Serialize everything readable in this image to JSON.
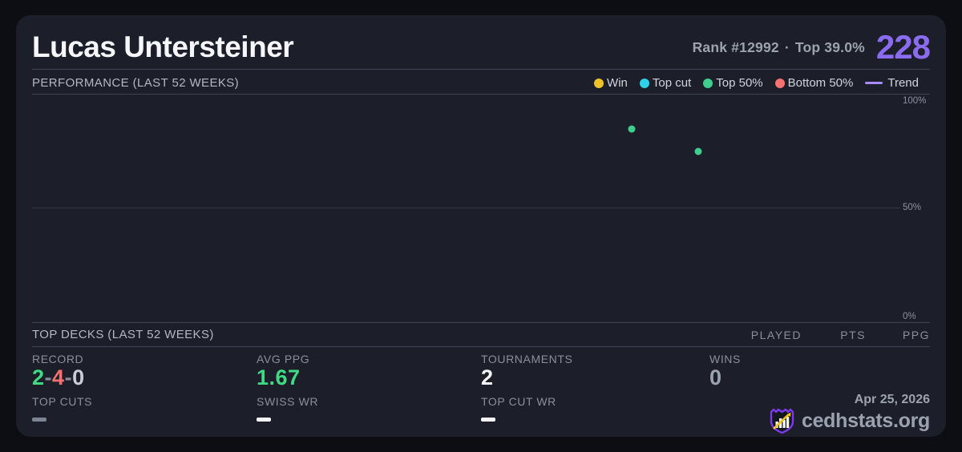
{
  "header": {
    "player_name": "Lucas Untersteiner",
    "rank_text": "Rank #12992",
    "dot_separator": "·",
    "top_percent_text": "Top 39.0%",
    "score": "228",
    "score_color": "#8b6cf0"
  },
  "performance": {
    "title": "PERFORMANCE (LAST 52 WEEKS)",
    "legend": [
      {
        "label": "Win",
        "color": "#eec327",
        "swatch": "dot"
      },
      {
        "label": "Top cut",
        "color": "#2fd3e8",
        "swatch": "dot"
      },
      {
        "label": "Top 50%",
        "color": "#3ecf8e",
        "swatch": "dot"
      },
      {
        "label": "Bottom 50%",
        "color": "#f87171",
        "swatch": "dot"
      },
      {
        "label": "Trend",
        "color": "#a78bfa",
        "swatch": "line"
      }
    ]
  },
  "chart_data": {
    "type": "scatter",
    "title": "",
    "xlabel": "",
    "ylabel": "",
    "x_range_weeks": 52,
    "ylim": [
      0,
      100
    ],
    "ytick_labels": [
      "100%",
      "50%",
      "0%"
    ],
    "grid": true,
    "legend_position": "top-right",
    "points": [
      {
        "week": 36,
        "percentile": 85,
        "category": "Top 50%",
        "color": "#3ecf8e"
      },
      {
        "week": 40,
        "percentile": 75,
        "category": "Top 50%",
        "color": "#3ecf8e"
      }
    ]
  },
  "top_decks": {
    "title": "TOP DECKS (LAST 52 WEEKS)",
    "columns": [
      "PLAYED",
      "PTS",
      "PPG"
    ],
    "rows": []
  },
  "stats": {
    "record": {
      "label": "RECORD",
      "wins": "2",
      "losses": "4",
      "draws": "0",
      "sep": "-"
    },
    "avg_ppg": {
      "label": "AVG PPG",
      "value": "1.67"
    },
    "tournaments": {
      "label": "TOURNAMENTS",
      "value": "2"
    },
    "wins": {
      "label": "WINS",
      "value": "0"
    },
    "top_cuts": {
      "label": "TOP CUTS",
      "value": "—"
    },
    "swiss_wr": {
      "label": "SWISS WR",
      "value": "—"
    },
    "top_cut_wr": {
      "label": "TOP CUT WR",
      "value": "—"
    }
  },
  "footer": {
    "date": "Apr 25, 2026",
    "brand": "cedhstats.org"
  },
  "colors": {
    "page_bg": "#0d0e13",
    "card_bg": "#1c1f29",
    "separator": "#3e4453",
    "gridline": "#353b49",
    "title_text": "#f5f7fa",
    "muted_text": "#9ca3af",
    "accent_purple": "#8b6cf0",
    "trend_purple": "#a78bfa",
    "green": "#41d984",
    "red": "#f87171",
    "yellow": "#eec327",
    "cyan": "#2fd3e8",
    "brand_purple": "#7c3aed",
    "arrow_yellow": "#f0c420"
  }
}
